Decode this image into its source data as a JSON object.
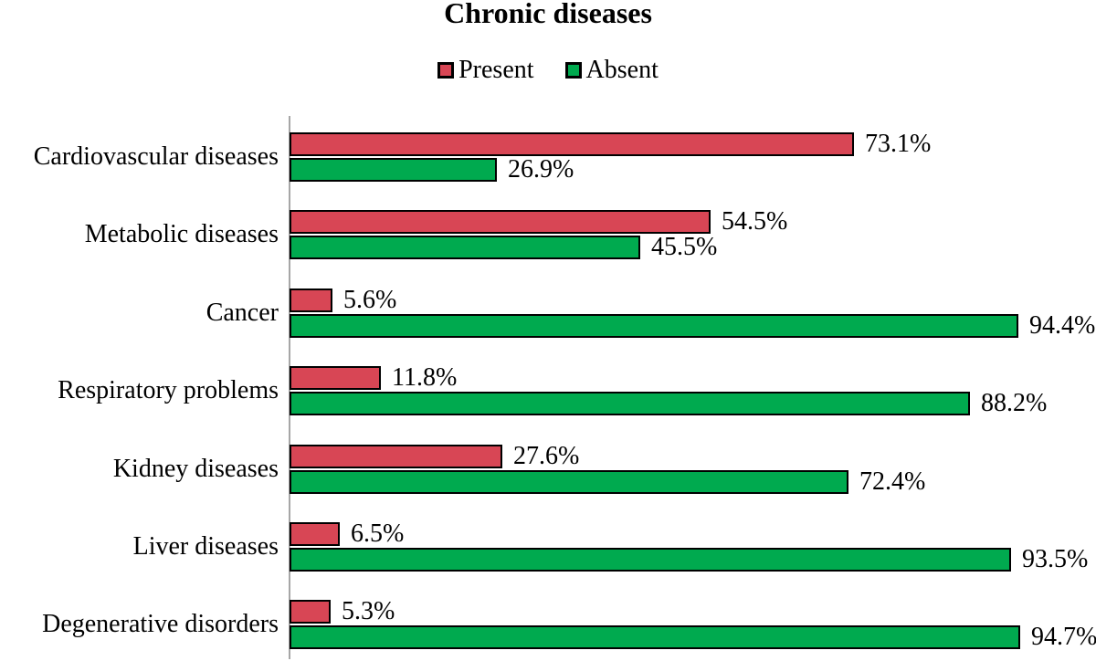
{
  "chart_data": {
    "type": "bar",
    "orientation": "horizontal",
    "title": "Chronic diseases",
    "categories": [
      "Cardiovascular diseases",
      "Metabolic diseases",
      "Cancer",
      "Respiratory problems",
      "Kidney diseases",
      "Liver diseases",
      "Degenerative disorders"
    ],
    "series": [
      {
        "name": "Present",
        "color": "#d84655",
        "values": [
          73.1,
          54.5,
          5.6,
          11.8,
          27.6,
          6.5,
          5.3
        ]
      },
      {
        "name": "Absent",
        "color": "#00aa4f",
        "values": [
          26.9,
          45.5,
          94.4,
          88.2,
          72.4,
          93.5,
          94.7
        ]
      }
    ],
    "value_labels": [
      [
        "73.1%",
        "26.9%"
      ],
      [
        "54.5%",
        "45.5%"
      ],
      [
        "5.6%",
        "94.4%"
      ],
      [
        "11.8%",
        "88.2%"
      ],
      [
        "27.6%",
        "72.4%"
      ],
      [
        "6.5%",
        "93.5%"
      ],
      [
        "5.3%",
        "94.7%"
      ]
    ],
    "value_suffix": "%",
    "xlim": [
      0,
      100
    ],
    "legend_position": "top",
    "grid": false,
    "bar_border_color": "#000000",
    "axis_line_color": "#a6a6a6",
    "background_color": "#ffffff"
  }
}
